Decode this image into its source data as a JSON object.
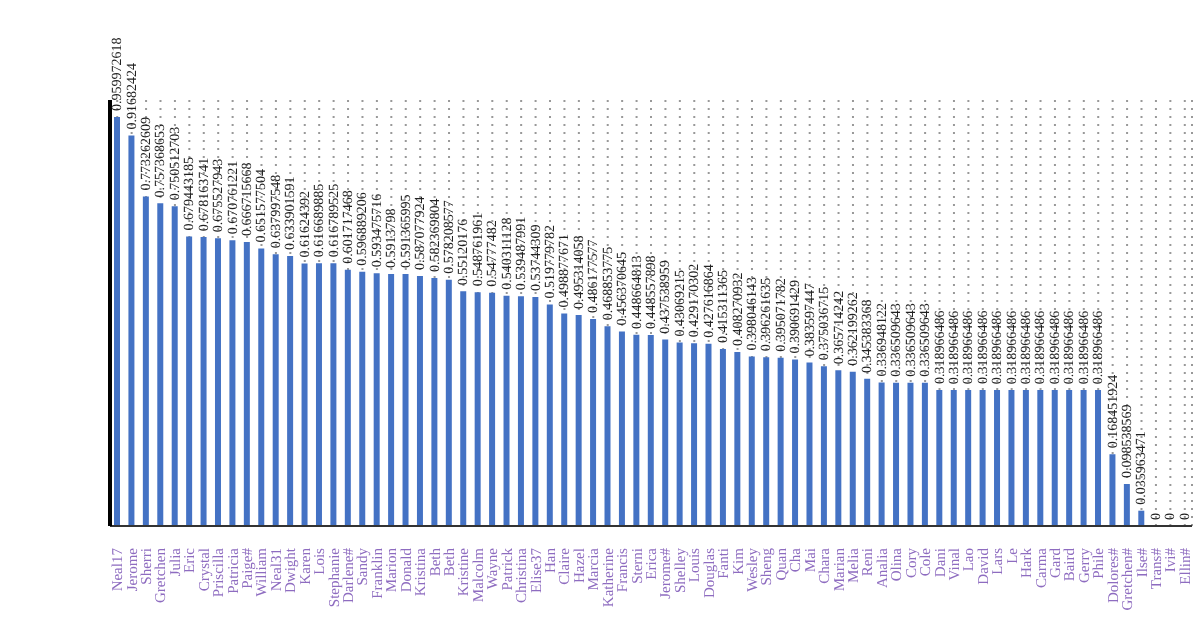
{
  "chart_data": {
    "type": "bar",
    "categories": [
      "Neal17",
      "Jerome",
      "Sherri",
      "Gretchen",
      "Julia",
      "Eric",
      "Crystal",
      "Priscilla",
      "Patricia",
      "Paige#",
      "William",
      "Neal31",
      "Dwight",
      "Karen",
      "Lois",
      "Stephanie",
      "Darlene#",
      "Sandy",
      "Franklin",
      "Marion",
      "Donald",
      "Kristina",
      "Beth",
      "Beth",
      "Kristine",
      "Malcolm",
      "Wayne",
      "Patrick",
      "Christina",
      "Elise37",
      "Han",
      "Claire",
      "Hazel",
      "Marcia",
      "Katherine",
      "Francis",
      "Sterni",
      "Erica",
      "Jerome#",
      "Shelley",
      "Louis",
      "Douglas",
      "Fanti",
      "Kim",
      "Wesley",
      "Sheng",
      "Quan",
      "Cha",
      "Mai",
      "Chara",
      "Marian",
      "Melia",
      "Reni",
      "Analia",
      "Olina",
      "Cory",
      "Cole",
      "Dani",
      "Vinal",
      "Lao",
      "David",
      "Lars",
      "Le",
      "Hark",
      "Carma",
      "Gard",
      "Baird",
      "Gerry",
      "Phile",
      "Dolores#",
      "Gretchen#",
      "Ilse#",
      "Trans#",
      "Ivi#",
      "Ellin#"
    ],
    "values": [
      0.959972618,
      0.91682424,
      0.773262609,
      0.757368653,
      0.750512703,
      0.679443185,
      0.678163741,
      0.675527943,
      0.670761221,
      0.666715668,
      0.651577504,
      0.637997548,
      0.633901591,
      0.61624392,
      0.616689885,
      0.616789525,
      0.601717468,
      0.596889206,
      0.593475716,
      0.5913798,
      0.591365995,
      0.587077924,
      0.582369804,
      0.578208577,
      0.55120176,
      0.548761961,
      0.54777482,
      0.540311128,
      0.539487991,
      0.53744309,
      0.519779782,
      0.498877671,
      0.495314058,
      0.486177577,
      0.468853775,
      0.456370645,
      0.448664813,
      0.448557898,
      0.437538959,
      0.43069215,
      0.429170302,
      0.427616864,
      0.415311365,
      0.408270932,
      0.398046143,
      0.396261635,
      0.395071782,
      0.390691429,
      0.383597447,
      0.375036715,
      0.365714242,
      0.362199262,
      0.345383368,
      0.336948122,
      0.336509643,
      0.336509643,
      0.336509643,
      0.318966486,
      0.318966486,
      0.318966486,
      0.318966486,
      0.318966486,
      0.318966486,
      0.318966486,
      0.318966486,
      0.318966486,
      0.318966486,
      0.318966486,
      0.318966486,
      0.168451924,
      0.098538569,
      0.035963471,
      0,
      0,
      0
    ],
    "color": "#4472c4",
    "ylim": [
      0,
      1
    ],
    "tick_labels": "x",
    "data_labels": true,
    "grid": "x"
  }
}
